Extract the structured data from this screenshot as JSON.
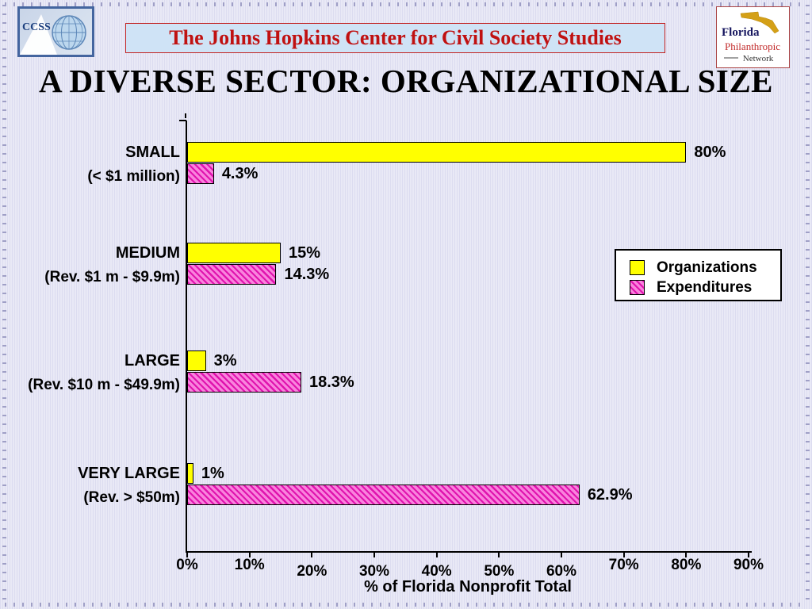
{
  "header": {
    "ccss_logo": {
      "text": "CCSS"
    },
    "banner": {
      "text": "The Johns Hopkins Center for Civil Society Studies"
    },
    "florida_logo": {
      "line1": "Florida",
      "line2": "Philanthropic",
      "line3": "Network"
    }
  },
  "title": "A DIVERSE SECTOR: ORGANIZATIONAL SIZE",
  "chart_data": {
    "type": "bar",
    "orientation": "horizontal",
    "title": "A DIVERSE SECTOR: ORGANIZATIONAL SIZE",
    "xlabel": "% of Florida Nonprofit Total",
    "xlim": [
      0,
      90
    ],
    "x_ticks": [
      "0%",
      "10%",
      "20%",
      "30%",
      "40%",
      "50%",
      "60%",
      "70%",
      "80%",
      "90%"
    ],
    "grid": false,
    "legend_position": "middle-right",
    "categories": [
      {
        "label": "SMALL",
        "sublabel": "(< $1 million)"
      },
      {
        "label": "MEDIUM",
        "sublabel": "(Rev. $1 m - $9.9m)"
      },
      {
        "label": "LARGE",
        "sublabel": "(Rev. $10 m - $49.9m)"
      },
      {
        "label": "VERY LARGE",
        "sublabel": "(Rev. > $50m)"
      }
    ],
    "series": [
      {
        "name": "Organizations",
        "color": "#ffff00",
        "pattern": "solid",
        "values": [
          80,
          15,
          3,
          1
        ],
        "labels": [
          "80%",
          "15%",
          "3%",
          "1%"
        ]
      },
      {
        "name": "Expenditures",
        "color": "#e013ae",
        "pattern": "diagonal-hatch",
        "values": [
          4.3,
          14.3,
          18.3,
          62.9
        ],
        "labels": [
          "4.3%",
          "14.3%",
          "18.3%",
          "62.9%"
        ]
      }
    ]
  },
  "colors": {
    "background": "#e9e9f6",
    "banner_bg": "#cfe3f6",
    "banner_text": "#c01111",
    "bar_yellow": "#ffff00",
    "bar_pink": "#e013ae"
  }
}
